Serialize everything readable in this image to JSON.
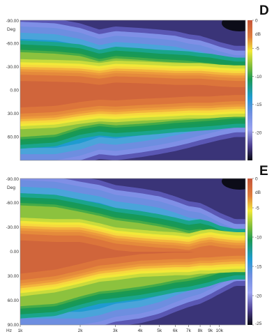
{
  "chart_data": [
    {
      "type": "heatmap",
      "panel_label": "D",
      "title": "",
      "xlabel": "",
      "ylabel": "Deg",
      "y_ticks": [
        "-90.00",
        "-60.00",
        "-30.00",
        "0.00",
        "30.00",
        "60.00"
      ],
      "ylim": [
        -90,
        90
      ],
      "colorbar": {
        "unit": "dB",
        "ticks": [
          "0",
          "-5",
          "-10",
          "-15",
          "-20"
        ],
        "range": [
          -25,
          0
        ]
      },
      "contours_dB": {
        "x_hz": [
          1000,
          1500,
          2000,
          2500,
          3000,
          4000,
          5000,
          6000,
          7000,
          8000,
          9000,
          10000,
          12000
        ],
        "upper_-3dB_deg": [
          -30,
          -29,
          -28,
          -25,
          -28,
          -27,
          -26,
          -25,
          -25,
          -25,
          -24,
          -23,
          -22
        ],
        "lower_-3dB_deg": [
          40,
          38,
          33,
          30,
          31,
          29,
          28,
          27,
          26,
          26,
          26,
          25,
          24
        ],
        "upper_-10dB_deg": [
          -52,
          -50,
          -47,
          -40,
          -44,
          -42,
          -40,
          -39,
          -38,
          -36,
          -35,
          -33,
          -30
        ],
        "lower_-10dB_deg": [
          63,
          60,
          50,
          46,
          48,
          46,
          44,
          42,
          41,
          40,
          39,
          38,
          36
        ],
        "upper_-18dB_deg": [
          -82,
          -80,
          -74,
          -66,
          -70,
          -68,
          -66,
          -64,
          -60,
          -58,
          -54,
          -50,
          -45
        ],
        "lower_-18dB_deg": [
          90,
          90,
          84,
          76,
          78,
          74,
          70,
          66,
          62,
          58,
          55,
          52,
          48
        ]
      }
    },
    {
      "type": "heatmap",
      "panel_label": "E",
      "title": "",
      "xlabel": "Hz",
      "ylabel": "Deg",
      "x_ticks": [
        "1k",
        "2k",
        "3k",
        "4k",
        "5k",
        "6k",
        "7k",
        "8k",
        "9k",
        "10k"
      ],
      "x_values_hz": [
        1000,
        2000,
        3000,
        4000,
        5000,
        6000,
        7000,
        8000,
        9000,
        10000
      ],
      "x_scale": "log",
      "xlim": [
        1000,
        13500
      ],
      "y_ticks": [
        "-90.00",
        "-60.00",
        "-30.00",
        "0.00",
        "30.00",
        "60.00",
        "90.00"
      ],
      "ylim": [
        -90,
        90
      ],
      "colorbar": {
        "unit": "dB",
        "ticks": [
          "0",
          "-5",
          "-10",
          "-15",
          "-20",
          "-25"
        ],
        "range": [
          -25,
          0
        ]
      },
      "contours_dB": {
        "x_hz": [
          1000,
          1500,
          2000,
          2500,
          3000,
          4000,
          5000,
          6000,
          7000,
          8000,
          9000,
          10000,
          12000
        ],
        "upper_-3dB_deg": [
          -32,
          -30,
          -30,
          -25,
          -20,
          -17,
          -15,
          -14,
          -12,
          -16,
          -18,
          -16,
          -14
        ],
        "lower_-3dB_deg": [
          45,
          40,
          33,
          27,
          25,
          21,
          20,
          19,
          19,
          17,
          17,
          16,
          15
        ],
        "upper_-10dB_deg": [
          -60,
          -58,
          -52,
          -47,
          -42,
          -38,
          -34,
          -30,
          -26,
          -28,
          -25,
          -20,
          -16
        ],
        "lower_-10dB_deg": [
          70,
          67,
          58,
          52,
          50,
          46,
          42,
          38,
          36,
          33,
          30,
          26,
          22
        ],
        "upper_-18dB_deg": [
          -88,
          -86,
          -80,
          -76,
          -70,
          -66,
          -62,
          -56,
          -50,
          -48,
          -42,
          -36,
          -28
        ],
        "lower_-18dB_deg": [
          90,
          90,
          90,
          86,
          80,
          76,
          70,
          62,
          56,
          52,
          46,
          40,
          30
        ]
      }
    }
  ]
}
